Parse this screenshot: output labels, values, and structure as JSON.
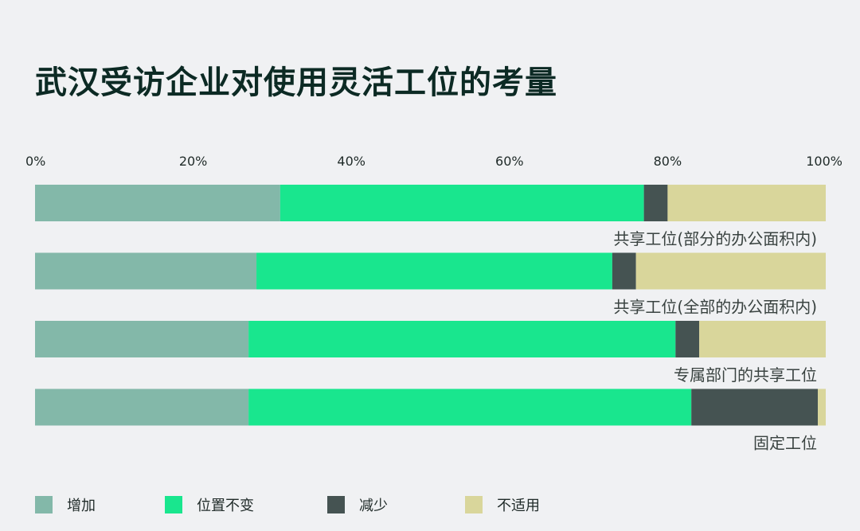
{
  "title": "武汉受访企业对使用灵活工位的考量",
  "chart_data": {
    "type": "bar",
    "orientation": "horizontal",
    "stacked": true,
    "x_ticks": [
      "0%",
      "20%",
      "40%",
      "60%",
      "80%",
      "100%"
    ],
    "xlim": [
      0,
      100
    ],
    "categories": [
      "共享工位(部分的办公面积内)",
      "共享工位(全部的办公面积内)",
      "专属部门的共享工位",
      "固定工位"
    ],
    "series": [
      {
        "name": "增加",
        "color": "#83b8a9",
        "values": [
          31,
          28,
          27,
          27
        ]
      },
      {
        "name": "位置不变",
        "color": "#19e68e",
        "values": [
          46,
          45,
          54,
          56
        ]
      },
      {
        "name": "减少",
        "color": "#455352",
        "values": [
          3,
          3,
          3,
          16
        ]
      },
      {
        "name": "不适用",
        "color": "#d9d69b",
        "values": [
          20,
          24,
          16,
          1
        ]
      }
    ],
    "legend_position": "bottom",
    "grid": false
  }
}
